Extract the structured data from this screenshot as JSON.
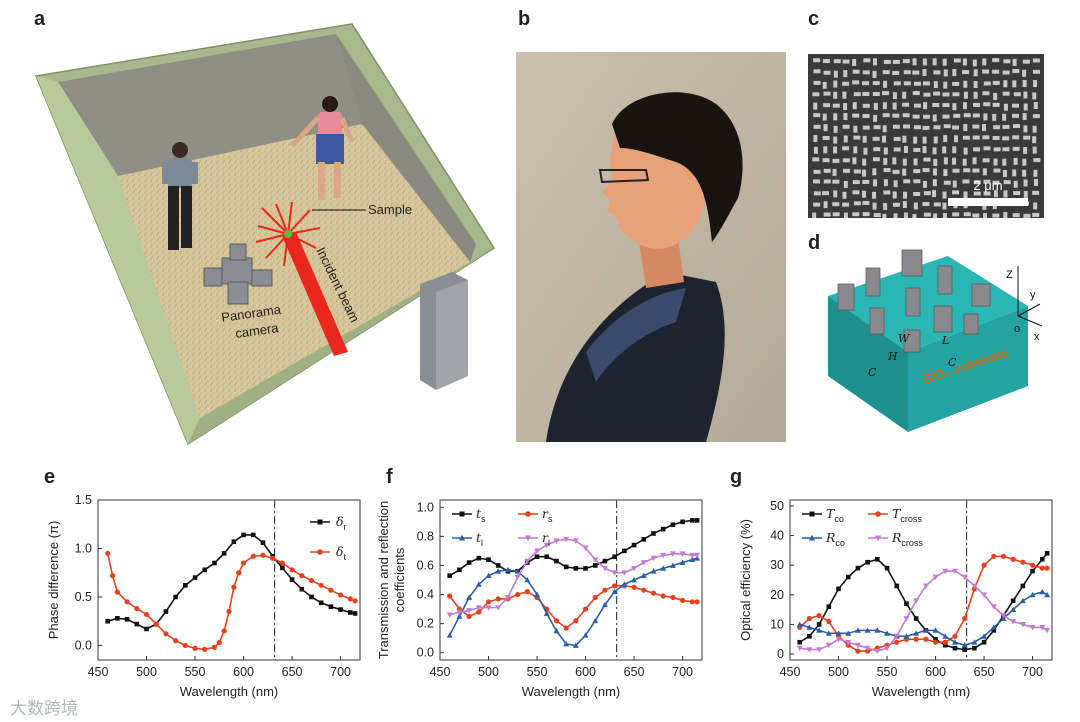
{
  "panels": {
    "a": {
      "letter": "a",
      "sample_label": "Sample",
      "incident_label": "Incident beam",
      "camera_label_1": "Panorama",
      "camera_label_2": "camera"
    },
    "b": {
      "letter": "b"
    },
    "c": {
      "letter": "c",
      "scale_bar": "2 μm"
    },
    "d": {
      "letter": "d",
      "substrate_label": "SiO₂ substrate",
      "dims": [
        "W",
        "L",
        "H",
        "C",
        "C"
      ],
      "axes": [
        "Z",
        "y",
        "x",
        "o"
      ]
    },
    "e": {
      "letter": "e"
    },
    "f": {
      "letter": "f"
    },
    "g": {
      "letter": "g"
    }
  },
  "colors": {
    "black": "#111111",
    "red": "#e8401c",
    "blue": "#2b5fa8",
    "purple": "#c47ad6",
    "dashdot": "#444466"
  },
  "chart_data": [
    {
      "panel": "e",
      "type": "line",
      "xlabel": "Wavelength (nm)",
      "ylabel": "Phase difference (π)",
      "xlim": [
        450,
        720
      ],
      "ylim": [
        -0.15,
        1.5
      ],
      "xticks": [
        450,
        500,
        550,
        600,
        650,
        700
      ],
      "yticks": [
        0.0,
        0.5,
        1.0,
        1.5
      ],
      "ytick_labels": [
        "0.0",
        "0.5",
        "1.0",
        "1.5"
      ],
      "vline": 632,
      "series": [
        {
          "name": "δr",
          "color": "black",
          "marker": "square",
          "x": [
            460,
            470,
            480,
            490,
            500,
            510,
            520,
            530,
            540,
            550,
            560,
            570,
            580,
            590,
            600,
            610,
            620,
            630,
            640,
            650,
            660,
            670,
            680,
            690,
            700,
            710,
            715
          ],
          "y": [
            0.25,
            0.28,
            0.27,
            0.22,
            0.17,
            0.22,
            0.35,
            0.5,
            0.62,
            0.7,
            0.78,
            0.85,
            0.95,
            1.07,
            1.14,
            1.14,
            1.06,
            0.92,
            0.8,
            0.68,
            0.58,
            0.5,
            0.44,
            0.4,
            0.37,
            0.34,
            0.33
          ]
        },
        {
          "name": "δt",
          "color": "red",
          "marker": "circle",
          "x": [
            460,
            465,
            470,
            480,
            490,
            500,
            510,
            520,
            530,
            540,
            550,
            560,
            570,
            575,
            580,
            585,
            590,
            595,
            600,
            610,
            620,
            630,
            640,
            650,
            660,
            670,
            680,
            690,
            700,
            710,
            715
          ],
          "y": [
            0.95,
            0.72,
            0.55,
            0.45,
            0.38,
            0.32,
            0.22,
            0.12,
            0.05,
            0.0,
            -0.03,
            -0.04,
            -0.02,
            0.03,
            0.15,
            0.35,
            0.6,
            0.75,
            0.85,
            0.92,
            0.93,
            0.9,
            0.85,
            0.78,
            0.72,
            0.67,
            0.62,
            0.57,
            0.52,
            0.48,
            0.46
          ]
        }
      ]
    },
    {
      "panel": "f",
      "type": "line",
      "xlabel": "Wavelength (nm)",
      "ylabel": "Transmission and reflection coefficients",
      "xlim": [
        450,
        720
      ],
      "ylim": [
        -0.05,
        1.05
      ],
      "xticks": [
        450,
        500,
        550,
        600,
        650,
        700
      ],
      "yticks": [
        0.0,
        0.2,
        0.4,
        0.6,
        0.8,
        1.0
      ],
      "ytick_labels": [
        "0.0",
        "0.2",
        "0.4",
        "0.6",
        "0.8",
        "1.0"
      ],
      "vline": 632,
      "series": [
        {
          "name": "ts",
          "label_main": "t",
          "label_sub": "s",
          "color": "black",
          "marker": "square",
          "x": [
            460,
            470,
            480,
            490,
            500,
            510,
            520,
            530,
            540,
            550,
            560,
            570,
            580,
            590,
            600,
            610,
            620,
            630,
            640,
            650,
            660,
            670,
            680,
            690,
            700,
            710,
            715
          ],
          "y": [
            0.53,
            0.57,
            0.62,
            0.65,
            0.64,
            0.6,
            0.56,
            0.56,
            0.62,
            0.66,
            0.66,
            0.63,
            0.59,
            0.58,
            0.58,
            0.6,
            0.63,
            0.66,
            0.7,
            0.74,
            0.78,
            0.82,
            0.85,
            0.88,
            0.9,
            0.91,
            0.91
          ]
        },
        {
          "name": "rs",
          "label_main": "r",
          "label_sub": "s",
          "color": "red",
          "marker": "circle",
          "x": [
            460,
            470,
            480,
            490,
            500,
            510,
            520,
            530,
            540,
            550,
            560,
            570,
            580,
            590,
            600,
            610,
            620,
            630,
            640,
            650,
            660,
            670,
            680,
            690,
            700,
            710,
            715
          ],
          "y": [
            0.39,
            0.3,
            0.25,
            0.28,
            0.35,
            0.37,
            0.37,
            0.4,
            0.42,
            0.38,
            0.3,
            0.22,
            0.17,
            0.22,
            0.3,
            0.38,
            0.43,
            0.46,
            0.46,
            0.45,
            0.43,
            0.41,
            0.39,
            0.38,
            0.36,
            0.35,
            0.35
          ]
        },
        {
          "name": "tl",
          "label_main": "t",
          "label_sub": "l",
          "color": "blue",
          "marker": "triangle",
          "x": [
            460,
            470,
            480,
            490,
            500,
            510,
            520,
            530,
            540,
            550,
            560,
            570,
            580,
            590,
            600,
            610,
            620,
            630,
            640,
            650,
            660,
            670,
            680,
            690,
            700,
            710,
            715
          ],
          "y": [
            0.12,
            0.25,
            0.38,
            0.47,
            0.53,
            0.56,
            0.57,
            0.56,
            0.5,
            0.4,
            0.27,
            0.15,
            0.06,
            0.05,
            0.12,
            0.22,
            0.33,
            0.42,
            0.47,
            0.5,
            0.53,
            0.56,
            0.58,
            0.6,
            0.62,
            0.64,
            0.65
          ]
        },
        {
          "name": "rl",
          "label_main": "r",
          "label_sub": "l",
          "color": "purple",
          "marker": "triangle-down",
          "x": [
            460,
            470,
            480,
            490,
            500,
            510,
            520,
            530,
            540,
            550,
            560,
            570,
            580,
            590,
            600,
            610,
            620,
            630,
            640,
            650,
            660,
            670,
            680,
            690,
            700,
            710,
            715
          ],
          "y": [
            0.26,
            0.28,
            0.29,
            0.31,
            0.31,
            0.31,
            0.38,
            0.52,
            0.63,
            0.7,
            0.74,
            0.77,
            0.78,
            0.77,
            0.72,
            0.64,
            0.58,
            0.55,
            0.55,
            0.58,
            0.62,
            0.65,
            0.67,
            0.68,
            0.68,
            0.67,
            0.67
          ]
        }
      ]
    },
    {
      "panel": "g",
      "type": "line",
      "xlabel": "Wavelength (nm)",
      "ylabel": "Optical efficiency (%)",
      "xlim": [
        450,
        720
      ],
      "ylim": [
        -2,
        52
      ],
      "xticks": [
        450,
        500,
        550,
        600,
        650,
        700
      ],
      "yticks": [
        0,
        10,
        20,
        30,
        40,
        50
      ],
      "ytick_labels": [
        "0",
        "10",
        "20",
        "30",
        "40",
        "50"
      ],
      "vline": 632,
      "series": [
        {
          "name": "Tco",
          "label_main": "T",
          "label_sub": "co",
          "color": "black",
          "marker": "square",
          "x": [
            460,
            470,
            480,
            490,
            500,
            510,
            520,
            530,
            540,
            550,
            560,
            570,
            580,
            590,
            600,
            610,
            620,
            630,
            640,
            650,
            660,
            670,
            680,
            690,
            700,
            710,
            715
          ],
          "y": [
            4,
            6,
            10,
            16,
            22,
            26,
            29,
            31,
            32,
            29,
            23,
            17,
            12,
            8,
            5,
            3,
            2,
            1.5,
            2,
            4,
            8,
            13,
            18,
            23,
            28,
            32,
            34
          ]
        },
        {
          "name": "Tcross",
          "label_main": "T",
          "label_sub": "cross",
          "color": "red",
          "marker": "circle",
          "x": [
            460,
            470,
            480,
            490,
            500,
            510,
            520,
            530,
            540,
            550,
            560,
            570,
            580,
            590,
            600,
            610,
            620,
            630,
            640,
            650,
            660,
            670,
            680,
            690,
            700,
            710,
            715
          ],
          "y": [
            9,
            12,
            13,
            11,
            6,
            3,
            1,
            1,
            2,
            3,
            4,
            5,
            5,
            5,
            4,
            4,
            6,
            12,
            22,
            30,
            33,
            33,
            32,
            31,
            30,
            29,
            29
          ]
        },
        {
          "name": "Rco",
          "label_main": "R",
          "label_sub": "co",
          "color": "blue",
          "marker": "triangle",
          "x": [
            460,
            470,
            480,
            490,
            500,
            510,
            520,
            530,
            540,
            550,
            560,
            570,
            580,
            590,
            600,
            610,
            620,
            630,
            640,
            650,
            660,
            670,
            680,
            690,
            700,
            710,
            715
          ],
          "y": [
            10,
            9,
            8,
            7,
            7,
            7,
            8,
            8,
            8,
            7,
            6,
            6,
            7,
            8,
            8,
            6,
            4,
            3,
            4,
            6,
            9,
            12,
            15,
            18,
            20,
            21,
            20
          ]
        },
        {
          "name": "Rcross",
          "label_main": "R",
          "label_sub": "cross",
          "color": "purple",
          "marker": "triangle-down",
          "x": [
            460,
            470,
            480,
            490,
            500,
            510,
            520,
            530,
            540,
            550,
            560,
            570,
            580,
            590,
            600,
            610,
            620,
            630,
            640,
            650,
            660,
            670,
            680,
            690,
            700,
            710,
            715
          ],
          "y": [
            2,
            1.5,
            1.5,
            3,
            5,
            4,
            3,
            2,
            1,
            2,
            6,
            12,
            18,
            23,
            26,
            28,
            28,
            26,
            23,
            20,
            16,
            13,
            11,
            10,
            9,
            9,
            8
          ]
        }
      ]
    }
  ],
  "watermark": "大数跨境"
}
